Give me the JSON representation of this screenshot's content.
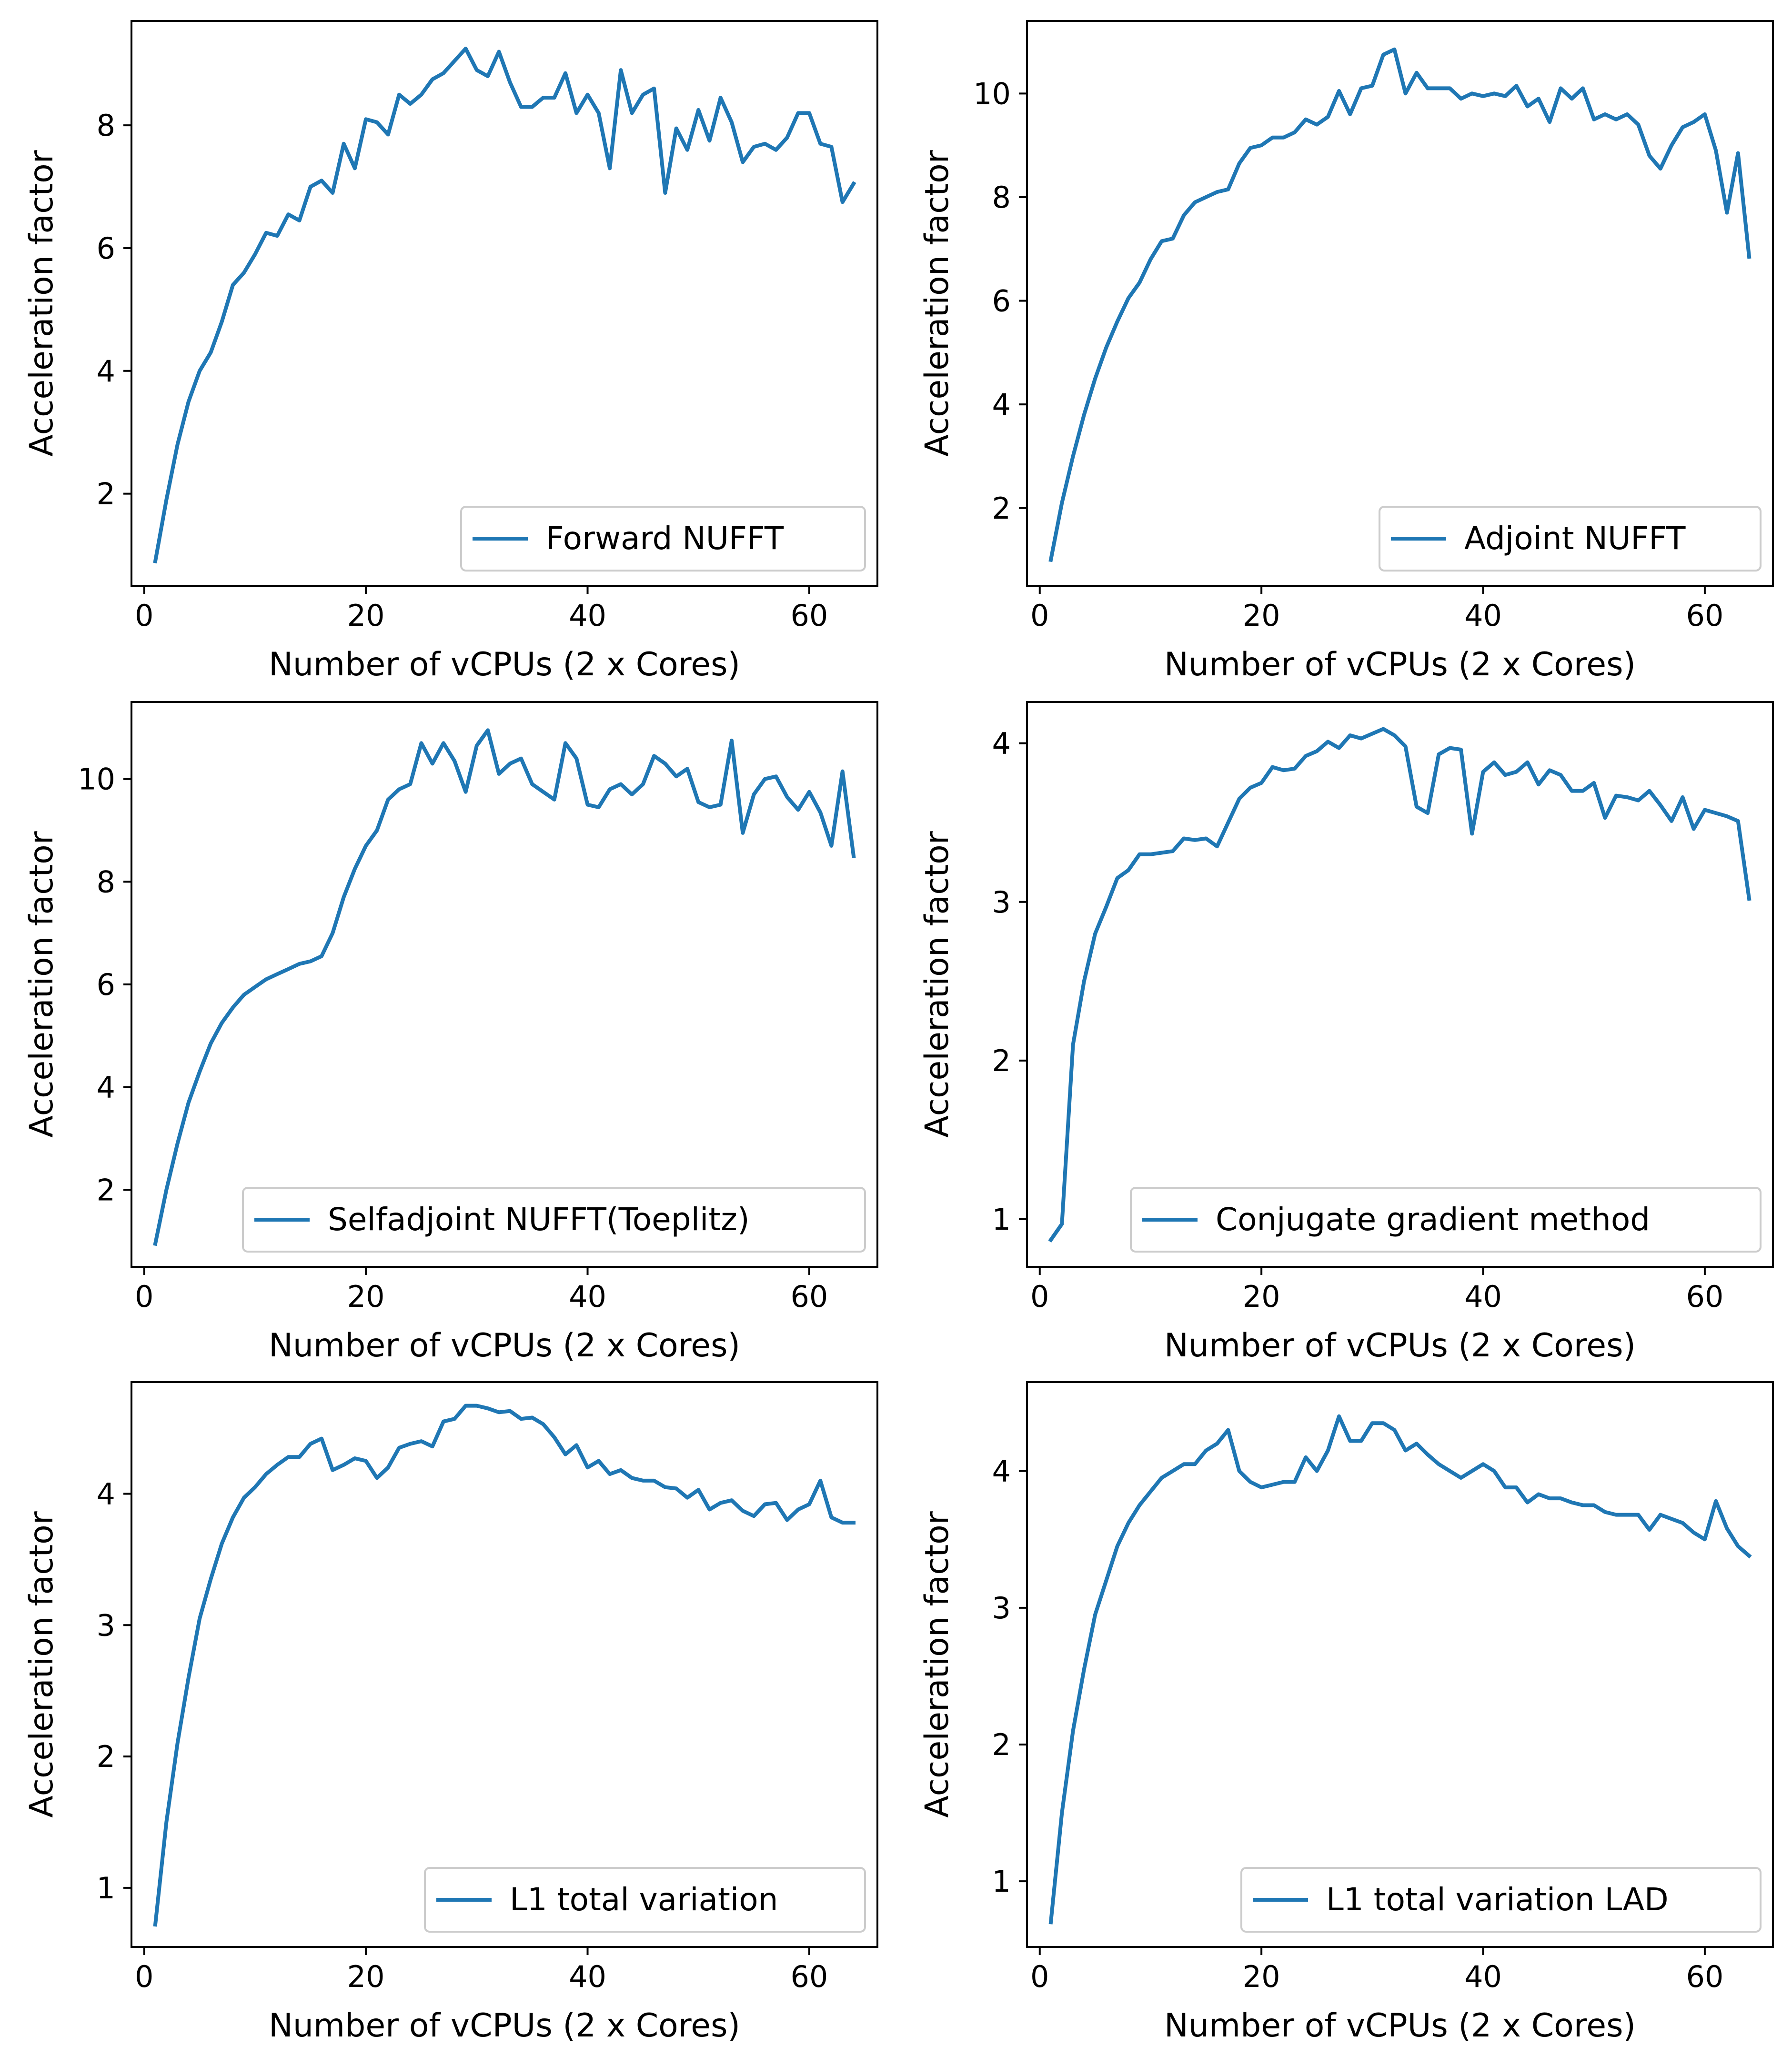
{
  "figure": {
    "line_color": "#1f77b4",
    "legend_frame_color": "#cccccc"
  },
  "chart_data": [
    {
      "type": "line",
      "series": [
        {
          "name": "Forward NUFFT",
          "x": [
            1,
            2,
            3,
            4,
            5,
            6,
            7,
            8,
            9,
            10,
            11,
            12,
            13,
            14,
            15,
            16,
            17,
            18,
            19,
            20,
            21,
            22,
            23,
            24,
            25,
            26,
            27,
            28,
            29,
            30,
            31,
            32,
            33,
            34,
            35,
            36,
            37,
            38,
            39,
            40,
            41,
            42,
            43,
            44,
            45,
            46,
            47,
            48,
            49,
            50,
            51,
            52,
            53,
            54,
            55,
            56,
            57,
            58,
            59,
            60,
            61,
            62,
            63,
            64
          ],
          "y": [
            0.9,
            1.9,
            2.8,
            3.5,
            4.0,
            4.3,
            4.8,
            5.4,
            5.6,
            5.9,
            6.25,
            6.2,
            6.55,
            6.45,
            7.0,
            7.1,
            6.9,
            7.7,
            7.3,
            8.1,
            8.05,
            7.85,
            8.5,
            8.35,
            8.5,
            8.75,
            8.85,
            9.05,
            9.25,
            8.9,
            8.8,
            9.2,
            8.7,
            8.3,
            8.3,
            8.45,
            8.45,
            8.85,
            8.2,
            8.5,
            8.2,
            7.3,
            8.9,
            8.2,
            8.5,
            8.6,
            6.9,
            7.95,
            7.6,
            8.25,
            7.75,
            8.45,
            8.05,
            7.4,
            7.65,
            7.7,
            7.6,
            7.8,
            8.2,
            8.2,
            7.7,
            7.65,
            6.75,
            7.05
          ]
        }
      ],
      "xlabel": "Number of vCPUs (2 x Cores)",
      "ylabel": "Acceleration factor",
      "xlim": [
        -1.15,
        66.15
      ],
      "ylim": [
        0.5,
        9.7
      ],
      "xticks": [
        0,
        20,
        40,
        60
      ],
      "yticks": [
        2,
        4,
        6,
        8
      ],
      "legend_position": "lower-right",
      "grid": false
    },
    {
      "type": "line",
      "series": [
        {
          "name": "Adjoint NUFFT",
          "x": [
            1,
            2,
            3,
            4,
            5,
            6,
            7,
            8,
            9,
            10,
            11,
            12,
            13,
            14,
            15,
            16,
            17,
            18,
            19,
            20,
            21,
            22,
            23,
            24,
            25,
            26,
            27,
            28,
            29,
            30,
            31,
            32,
            33,
            34,
            35,
            36,
            37,
            38,
            39,
            40,
            41,
            42,
            43,
            44,
            45,
            46,
            47,
            48,
            49,
            50,
            51,
            52,
            53,
            54,
            55,
            56,
            57,
            58,
            59,
            60,
            61,
            62,
            63,
            64
          ],
          "y": [
            1.0,
            2.1,
            3.0,
            3.8,
            4.5,
            5.1,
            5.6,
            6.05,
            6.35,
            6.8,
            7.15,
            7.2,
            7.65,
            7.9,
            8.0,
            8.1,
            8.15,
            8.65,
            8.95,
            9.0,
            9.15,
            9.15,
            9.25,
            9.5,
            9.4,
            9.55,
            10.05,
            9.6,
            10.1,
            10.15,
            10.75,
            10.85,
            10.0,
            10.4,
            10.1,
            10.1,
            10.1,
            9.9,
            10.0,
            9.95,
            10.0,
            9.95,
            10.15,
            9.75,
            9.9,
            9.45,
            10.1,
            9.9,
            10.1,
            9.5,
            9.6,
            9.5,
            9.6,
            9.4,
            8.8,
            8.55,
            9.0,
            9.35,
            9.45,
            9.6,
            8.9,
            7.7,
            8.85,
            6.85
          ]
        }
      ],
      "xlabel": "Number of vCPUs (2 x Cores)",
      "ylabel": "Acceleration factor",
      "xlim": [
        -1.15,
        66.15
      ],
      "ylim": [
        0.5,
        11.4
      ],
      "xticks": [
        0,
        20,
        40,
        60
      ],
      "yticks": [
        2,
        4,
        6,
        8,
        10
      ],
      "legend_position": "lower-right",
      "grid": false
    },
    {
      "type": "line",
      "series": [
        {
          "name": "Selfadjoint NUFFT(Toeplitz)",
          "x": [
            1,
            2,
            3,
            4,
            5,
            6,
            7,
            8,
            9,
            10,
            11,
            12,
            13,
            14,
            15,
            16,
            17,
            18,
            19,
            20,
            21,
            22,
            23,
            24,
            25,
            26,
            27,
            28,
            29,
            30,
            31,
            32,
            33,
            34,
            35,
            36,
            37,
            38,
            39,
            40,
            41,
            42,
            43,
            44,
            45,
            46,
            47,
            48,
            49,
            50,
            51,
            52,
            53,
            54,
            55,
            56,
            57,
            58,
            59,
            60,
            61,
            62,
            63,
            64
          ],
          "y": [
            0.95,
            2.0,
            2.9,
            3.7,
            4.3,
            4.85,
            5.25,
            5.55,
            5.8,
            5.95,
            6.1,
            6.2,
            6.3,
            6.4,
            6.45,
            6.55,
            7.0,
            7.7,
            8.25,
            8.7,
            9.0,
            9.6,
            9.8,
            9.9,
            10.7,
            10.3,
            10.7,
            10.35,
            9.75,
            10.65,
            10.95,
            10.1,
            10.3,
            10.4,
            9.9,
            9.75,
            9.6,
            10.7,
            10.4,
            9.5,
            9.45,
            9.8,
            9.9,
            9.7,
            9.9,
            10.45,
            10.3,
            10.05,
            10.2,
            9.55,
            9.45,
            9.5,
            10.75,
            8.95,
            9.7,
            10.0,
            10.05,
            9.65,
            9.4,
            9.75,
            9.35,
            8.7,
            10.15,
            8.5
          ]
        }
      ],
      "xlabel": "Number of vCPUs (2 x Cores)",
      "ylabel": "Acceleration factor",
      "xlim": [
        -1.15,
        66.15
      ],
      "ylim": [
        0.5,
        11.5
      ],
      "xticks": [
        0,
        20,
        40,
        60
      ],
      "yticks": [
        2,
        4,
        6,
        8,
        10
      ],
      "legend_position": "lower-right",
      "grid": false
    },
    {
      "type": "line",
      "series": [
        {
          "name": "Conjugate gradient method",
          "x": [
            1,
            2,
            3,
            4,
            5,
            6,
            7,
            8,
            9,
            10,
            11,
            12,
            13,
            14,
            15,
            16,
            17,
            18,
            19,
            20,
            21,
            22,
            23,
            24,
            25,
            26,
            27,
            28,
            29,
            30,
            31,
            32,
            33,
            34,
            35,
            36,
            37,
            38,
            39,
            40,
            41,
            42,
            43,
            44,
            45,
            46,
            47,
            48,
            49,
            50,
            51,
            52,
            53,
            54,
            55,
            56,
            57,
            58,
            59,
            60,
            61,
            62,
            63,
            64
          ],
          "y": [
            0.87,
            0.97,
            2.1,
            2.5,
            2.8,
            2.97,
            3.15,
            3.2,
            3.3,
            3.3,
            3.31,
            3.32,
            3.4,
            3.39,
            3.4,
            3.35,
            3.5,
            3.65,
            3.72,
            3.75,
            3.85,
            3.83,
            3.84,
            3.92,
            3.95,
            4.01,
            3.97,
            4.05,
            4.03,
            4.06,
            4.09,
            4.05,
            3.98,
            3.6,
            3.56,
            3.93,
            3.97,
            3.96,
            3.43,
            3.82,
            3.88,
            3.8,
            3.82,
            3.88,
            3.74,
            3.83,
            3.8,
            3.7,
            3.7,
            3.75,
            3.53,
            3.67,
            3.66,
            3.64,
            3.7,
            3.61,
            3.51,
            3.66,
            3.46,
            3.58,
            3.56,
            3.54,
            3.51,
            3.02
          ]
        }
      ],
      "xlabel": "Number of vCPUs (2 x Cores)",
      "ylabel": "Acceleration factor",
      "xlim": [
        -1.15,
        66.15
      ],
      "ylim": [
        0.7,
        4.26
      ],
      "xticks": [
        0,
        20,
        40,
        60
      ],
      "yticks": [
        1,
        2,
        3,
        4
      ],
      "legend_position": "lower-right",
      "grid": false
    },
    {
      "type": "line",
      "series": [
        {
          "name": "L1 total variation",
          "x": [
            1,
            2,
            3,
            4,
            5,
            6,
            7,
            8,
            9,
            10,
            11,
            12,
            13,
            14,
            15,
            16,
            17,
            18,
            19,
            20,
            21,
            22,
            23,
            24,
            25,
            26,
            27,
            28,
            29,
            30,
            31,
            32,
            33,
            34,
            35,
            36,
            37,
            38,
            39,
            40,
            41,
            42,
            43,
            44,
            45,
            46,
            47,
            48,
            49,
            50,
            51,
            52,
            53,
            54,
            55,
            56,
            57,
            58,
            59,
            60,
            61,
            62,
            63,
            64
          ],
          "y": [
            0.72,
            1.5,
            2.1,
            2.6,
            3.05,
            3.35,
            3.62,
            3.82,
            3.97,
            4.05,
            4.15,
            4.22,
            4.28,
            4.28,
            4.38,
            4.42,
            4.18,
            4.22,
            4.27,
            4.25,
            4.12,
            4.2,
            4.35,
            4.38,
            4.4,
            4.36,
            4.55,
            4.57,
            4.67,
            4.67,
            4.65,
            4.62,
            4.63,
            4.57,
            4.58,
            4.53,
            4.43,
            4.3,
            4.37,
            4.2,
            4.25,
            4.15,
            4.18,
            4.12,
            4.1,
            4.1,
            4.05,
            4.04,
            3.97,
            4.03,
            3.88,
            3.93,
            3.95,
            3.87,
            3.83,
            3.92,
            3.93,
            3.8,
            3.88,
            3.92,
            4.1,
            3.82,
            3.78,
            3.78
          ]
        }
      ],
      "xlabel": "Number of vCPUs (2 x Cores)",
      "ylabel": "Acceleration factor",
      "xlim": [
        -1.15,
        66.15
      ],
      "ylim": [
        0.55,
        4.85
      ],
      "xticks": [
        0,
        20,
        40,
        60
      ],
      "yticks": [
        1,
        2,
        3,
        4
      ],
      "legend_position": "lower-right",
      "grid": false
    },
    {
      "type": "line",
      "series": [
        {
          "name": "L1 total variation LAD",
          "x": [
            1,
            2,
            3,
            4,
            5,
            6,
            7,
            8,
            9,
            10,
            11,
            12,
            13,
            14,
            15,
            16,
            17,
            18,
            19,
            20,
            21,
            22,
            23,
            24,
            25,
            26,
            27,
            28,
            29,
            30,
            31,
            32,
            33,
            34,
            35,
            36,
            37,
            38,
            39,
            40,
            41,
            42,
            43,
            44,
            45,
            46,
            47,
            48,
            49,
            50,
            51,
            52,
            53,
            54,
            55,
            56,
            57,
            58,
            59,
            60,
            61,
            62,
            63,
            64
          ],
          "y": [
            0.7,
            1.5,
            2.1,
            2.55,
            2.95,
            3.2,
            3.45,
            3.62,
            3.75,
            3.85,
            3.95,
            4.0,
            4.05,
            4.05,
            4.15,
            4.2,
            4.3,
            4.0,
            3.92,
            3.88,
            3.9,
            3.92,
            3.92,
            4.1,
            4.0,
            4.15,
            4.4,
            4.22,
            4.22,
            4.35,
            4.35,
            4.3,
            4.15,
            4.2,
            4.12,
            4.05,
            4.0,
            3.95,
            4.0,
            4.05,
            4.0,
            3.88,
            3.88,
            3.77,
            3.83,
            3.8,
            3.8,
            3.77,
            3.75,
            3.75,
            3.7,
            3.68,
            3.68,
            3.68,
            3.57,
            3.68,
            3.65,
            3.62,
            3.55,
            3.5,
            3.78,
            3.58,
            3.45,
            3.38
          ]
        }
      ],
      "xlabel": "Number of vCPUs (2 x Cores)",
      "ylabel": "Acceleration factor",
      "xlim": [
        -1.15,
        66.15
      ],
      "ylim": [
        0.52,
        4.65
      ],
      "xticks": [
        0,
        20,
        40,
        60
      ],
      "yticks": [
        1,
        2,
        3,
        4
      ],
      "legend_position": "lower-right",
      "grid": false
    }
  ]
}
